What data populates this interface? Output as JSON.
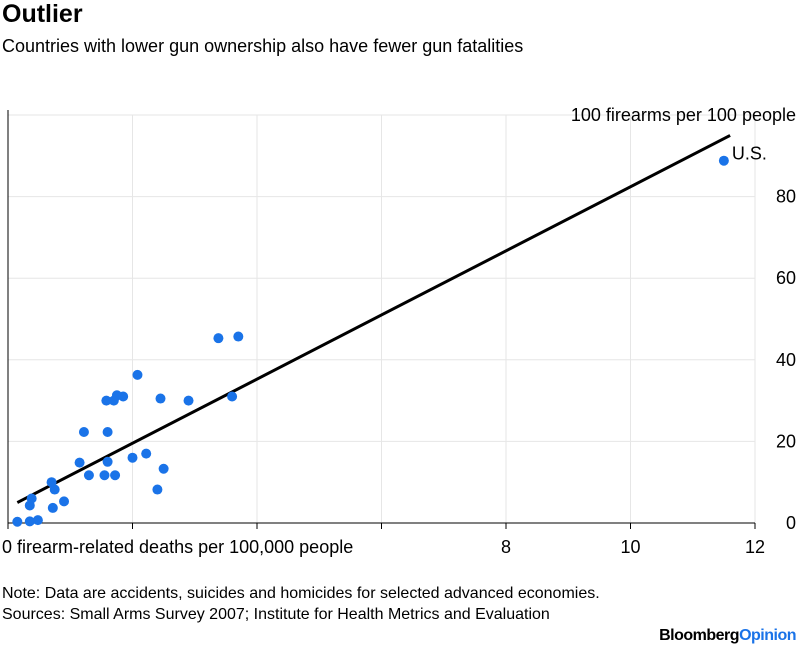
{
  "title": "Outlier",
  "subtitle": "Countries with lower gun ownership also have fewer gun fatalities",
  "chart_data": {
    "type": "scatter",
    "xlabel": "firearm-related deaths per 100,000 people",
    "ylabel": "firearms per 100 people",
    "xlim": [
      0,
      12
    ],
    "ylim": [
      0,
      100
    ],
    "x_ticks": [
      0,
      2,
      4,
      6,
      8,
      10,
      12
    ],
    "x_tick_labels": [
      "0 firearm-related deaths per 100,000 people",
      "",
      "",
      "",
      "8",
      "10",
      "12"
    ],
    "y_ticks": [
      0,
      20,
      40,
      60,
      80,
      100
    ],
    "y_tick_labels": [
      "0",
      "20",
      "40",
      "60",
      "80",
      "100 firearms per 100 people"
    ],
    "gridlines": true,
    "annotations": [
      {
        "text": "U.S.",
        "x": 11.5,
        "y": 88.8
      }
    ],
    "trendline": {
      "x": [
        0.15,
        11.6
      ],
      "y": [
        5,
        95
      ]
    },
    "points": [
      {
        "x": 0.15,
        "y": 0.3
      },
      {
        "x": 0.35,
        "y": 0.4
      },
      {
        "x": 0.48,
        "y": 0.7
      },
      {
        "x": 0.35,
        "y": 4.3
      },
      {
        "x": 0.38,
        "y": 6.0
      },
      {
        "x": 0.72,
        "y": 3.7
      },
      {
        "x": 0.9,
        "y": 5.3
      },
      {
        "x": 0.75,
        "y": 8.2
      },
      {
        "x": 0.7,
        "y": 10.0
      },
      {
        "x": 1.15,
        "y": 14.8
      },
      {
        "x": 1.3,
        "y": 11.7
      },
      {
        "x": 1.55,
        "y": 11.7
      },
      {
        "x": 1.72,
        "y": 11.7
      },
      {
        "x": 1.6,
        "y": 15.0
      },
      {
        "x": 1.22,
        "y": 22.3
      },
      {
        "x": 1.6,
        "y": 22.3
      },
      {
        "x": 1.58,
        "y": 30.0
      },
      {
        "x": 1.7,
        "y": 30.0
      },
      {
        "x": 1.75,
        "y": 31.3
      },
      {
        "x": 1.85,
        "y": 31.0
      },
      {
        "x": 2.0,
        "y": 16.0
      },
      {
        "x": 2.22,
        "y": 17.0
      },
      {
        "x": 2.08,
        "y": 36.3
      },
      {
        "x": 2.4,
        "y": 8.2
      },
      {
        "x": 2.5,
        "y": 13.3
      },
      {
        "x": 2.45,
        "y": 30.5
      },
      {
        "x": 2.9,
        "y": 30.0
      },
      {
        "x": 3.38,
        "y": 45.3
      },
      {
        "x": 3.6,
        "y": 31.0
      },
      {
        "x": 3.7,
        "y": 45.7
      },
      {
        "x": 11.5,
        "y": 88.8
      }
    ]
  },
  "note": "Note: Data are accidents, suicides and homicides for selected advanced economies.",
  "sources": "Sources: Small Arms Survey 2007; Institute for Health Metrics and Evaluation",
  "brand": {
    "main": "Bloomberg",
    "accent": "Opinion"
  },
  "colors": {
    "point": "#1a73e8",
    "trend": "#000000",
    "grid": "#e6e6e6",
    "axis": "#000000",
    "accent": "#1a73e8"
  }
}
